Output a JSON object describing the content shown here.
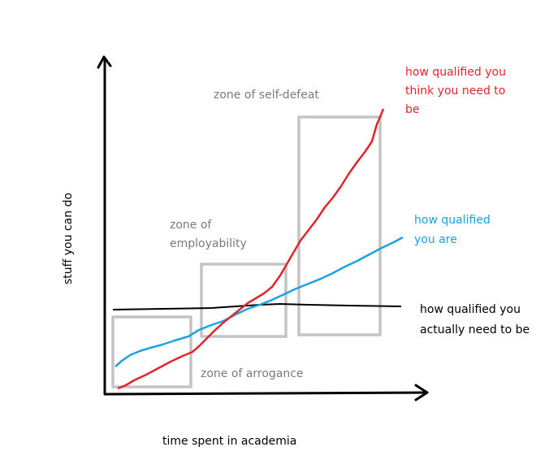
{
  "axes": {
    "x_label": "time spent in academia",
    "y_label": "stuff you can do"
  },
  "zones": {
    "self_defeat": "zone of self-defeat",
    "employability_1": "zone of",
    "employability_2": "employability",
    "arrogance": "zone of arrogance"
  },
  "curves": {
    "think": {
      "label_1": "how qualified you",
      "label_2": "think you need to",
      "label_3": "be",
      "color": "#e0262b"
    },
    "are": {
      "label_1": "how qualified",
      "label_2": "you are",
      "color": "#1aa3e0"
    },
    "need": {
      "label_1": "how qualified you",
      "label_2": "actually need to be",
      "color": "#000000"
    }
  },
  "box_color": "#c4c4c4"
}
